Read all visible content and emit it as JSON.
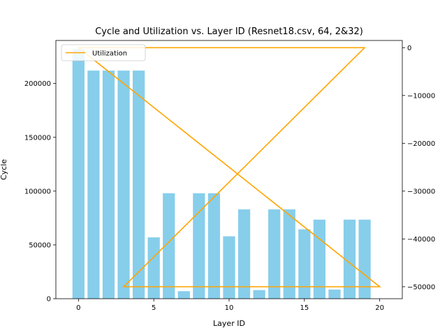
{
  "chart_data": {
    "type": "bar",
    "title": "Cycle and Utilization vs. Layer ID (Resnet18.csv, 64, 2&32)",
    "xlabel": "Layer ID",
    "ylabel": "Cycle",
    "xlim": [
      -1.5,
      21.5
    ],
    "ylim": [
      0,
      240000
    ],
    "y2lim": [
      -52500,
      1500
    ],
    "xticks": [
      "0",
      "5",
      "10",
      "15",
      "20"
    ],
    "yticks": [
      "0",
      "50000",
      "100000",
      "150000",
      "200000"
    ],
    "y2ticks": [
      "0",
      "−10000",
      "−20000",
      "−30000",
      "−40000",
      "−50000"
    ],
    "bar_color": "#87ceeb",
    "line_color": "#ffa500",
    "legend_position": "top-left",
    "grid": false,
    "bars": {
      "x": [
        0,
        1,
        2,
        3,
        4,
        5,
        6,
        7,
        8,
        9,
        10,
        11,
        12,
        13,
        14,
        15,
        16,
        17,
        18,
        19
      ],
      "values": [
        232000,
        212000,
        212000,
        212000,
        212000,
        57000,
        98000,
        7000,
        98000,
        98000,
        58000,
        83000,
        8000,
        83000,
        83000,
        64500,
        73500,
        8500,
        73500,
        73500
      ]
    },
    "series": [
      {
        "name": "Utilization",
        "x": [
          0,
          19,
          3,
          20,
          0,
          19
        ],
        "values": [
          0,
          0,
          -50000,
          -50000,
          0,
          0
        ]
      }
    ]
  }
}
